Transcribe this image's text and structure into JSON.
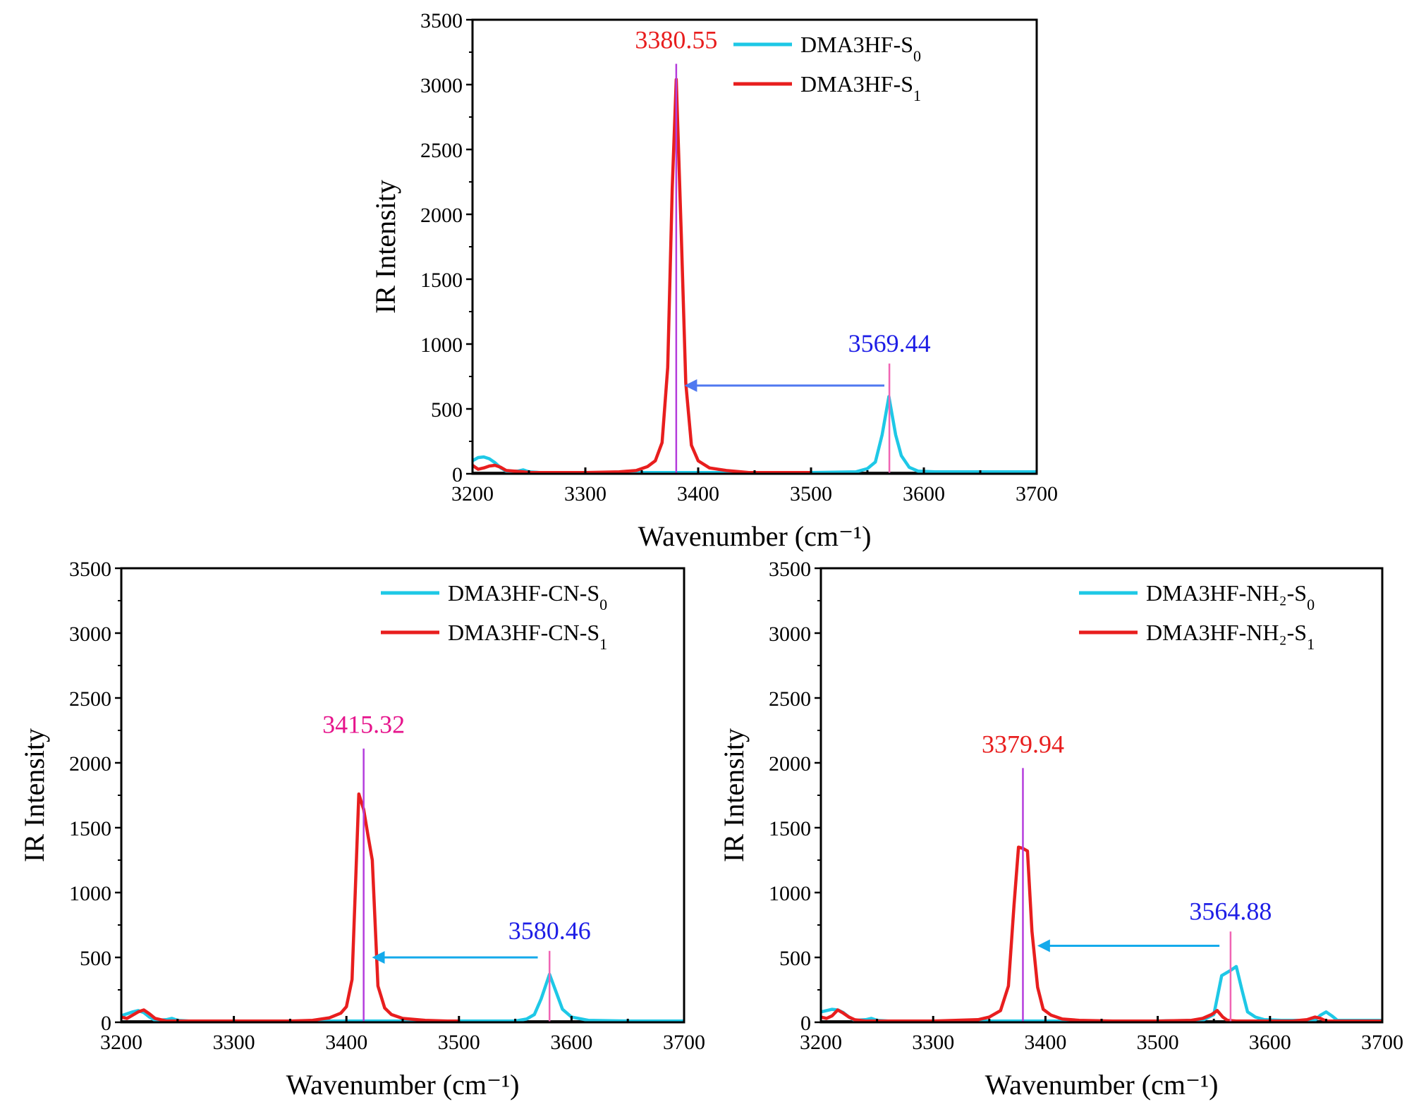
{
  "colors": {
    "s0": "#1ec8e6",
    "s1": "#e81e1e",
    "peak_line_s1": "#b43cdc",
    "peak_line_s0": "#f064b4",
    "label_red": "#e81e1e",
    "label_magenta": "#e6148c",
    "label_blue": "#1e1ee6",
    "arrow_blue": "#4f78f0",
    "arrow_cyan": "#14aaeb"
  },
  "chart_data": [
    {
      "type": "line",
      "xlabel": "Wavenumber (cm⁻¹)",
      "ylabel": "IR Intensity",
      "xlim": [
        3200,
        3700
      ],
      "ylim": [
        0,
        3500
      ],
      "xticks": [
        "3200",
        "3300",
        "3400",
        "3500",
        "3600",
        "3700"
      ],
      "yticks": [
        "0",
        "500",
        "1000",
        "1500",
        "2000",
        "2500",
        "3000",
        "3500"
      ],
      "legend_position": "top-right",
      "series": [
        {
          "key": "s0",
          "name": "DMA3HF-S",
          "subscript": "0",
          "x": [
            3200,
            3205,
            3210,
            3215,
            3220,
            3225,
            3230,
            3240,
            3245,
            3250,
            3260,
            3300,
            3400,
            3500,
            3540,
            3550,
            3557,
            3563,
            3569,
            3575,
            3580,
            3587,
            3595,
            3610,
            3650,
            3700
          ],
          "y": [
            100,
            125,
            130,
            115,
            85,
            45,
            20,
            20,
            30,
            15,
            10,
            10,
            10,
            10,
            15,
            40,
            90,
            300,
            595,
            300,
            140,
            50,
            20,
            15,
            15,
            15
          ]
        },
        {
          "key": "s1",
          "name": "DMA3HF-S",
          "subscript": "1",
          "x": [
            3200,
            3205,
            3210,
            3215,
            3220,
            3225,
            3230,
            3245,
            3250,
            3260,
            3300,
            3330,
            3345,
            3355,
            3362,
            3368,
            3373,
            3377,
            3380.55,
            3385,
            3389,
            3394,
            3400,
            3410,
            3425,
            3445,
            3480,
            3500
          ],
          "y": [
            65,
            35,
            45,
            60,
            65,
            50,
            25,
            15,
            10,
            10,
            10,
            15,
            25,
            55,
            100,
            240,
            820,
            2200,
            3040,
            1850,
            700,
            220,
            100,
            45,
            25,
            10,
            10,
            10
          ]
        }
      ],
      "peaks": [
        {
          "x": 3380.55,
          "label": "3380.55",
          "line_top": 3160,
          "label_y": 3280,
          "line_color_key": "peak_line_s1",
          "label_color_key": "label_red"
        },
        {
          "x": 3569.44,
          "label": "3569.44",
          "line_top": 850,
          "label_y": 940,
          "line_color_key": "peak_line_s0",
          "label_color_key": "label_blue"
        }
      ],
      "arrow": {
        "from_x": 3565,
        "to_x": 3390,
        "y": 680,
        "color_key": "arrow_blue"
      }
    },
    {
      "type": "line",
      "xlabel": "Wavenumber (cm⁻¹)",
      "ylabel": "IR Intensity",
      "xlim": [
        3200,
        3700
      ],
      "ylim": [
        0,
        3500
      ],
      "xticks": [
        "3200",
        "3300",
        "3400",
        "3500",
        "3600",
        "3700"
      ],
      "yticks": [
        "0",
        "500",
        "1000",
        "1500",
        "2000",
        "2500",
        "3000",
        "3500"
      ],
      "legend_position": "top-right",
      "series": [
        {
          "key": "s0",
          "name": "DMA3HF-CN-S",
          "subscript": "0",
          "x": [
            3200,
            3205,
            3210,
            3215,
            3220,
            3225,
            3230,
            3240,
            3245,
            3250,
            3260,
            3300,
            3400,
            3500,
            3550,
            3560,
            3567,
            3573,
            3580.46,
            3586,
            3592,
            3600,
            3615,
            3650,
            3700
          ],
          "y": [
            50,
            65,
            80,
            90,
            75,
            40,
            15,
            20,
            30,
            15,
            10,
            10,
            10,
            10,
            10,
            25,
            60,
            180,
            370,
            240,
            100,
            40,
            15,
            10,
            10
          ]
        },
        {
          "key": "s1",
          "name": "DMA3HF-CN-S",
          "subscript": "1",
          "x": [
            3200,
            3205,
            3210,
            3215,
            3220,
            3225,
            3230,
            3240,
            3250,
            3300,
            3350,
            3370,
            3385,
            3395,
            3400,
            3405,
            3411,
            3415.32,
            3419,
            3423,
            3428,
            3434,
            3440,
            3450,
            3470,
            3490,
            3500
          ],
          "y": [
            40,
            30,
            55,
            80,
            95,
            65,
            30,
            10,
            10,
            10,
            10,
            15,
            35,
            70,
            120,
            330,
            1760,
            1640,
            1450,
            1250,
            280,
            110,
            60,
            30,
            15,
            10,
            10
          ]
        }
      ],
      "peaks": [
        {
          "x": 3415.32,
          "label": "3415.32",
          "line_top": 2110,
          "label_y": 2230,
          "line_color_key": "peak_line_s1",
          "label_color_key": "label_magenta"
        },
        {
          "x": 3580.46,
          "label": "3580.46",
          "line_top": 550,
          "label_y": 640,
          "line_color_key": "peak_line_s0",
          "label_color_key": "label_blue"
        }
      ],
      "arrow": {
        "from_x": 3570,
        "to_x": 3425,
        "y": 500,
        "color_key": "arrow_cyan"
      }
    },
    {
      "type": "line",
      "xlabel": "Wavenumber (cm⁻¹)",
      "ylabel": "IR Intensity",
      "xlim": [
        3200,
        3700
      ],
      "ylim": [
        0,
        3500
      ],
      "xticks": [
        "3200",
        "3300",
        "3400",
        "3500",
        "3600",
        "3700"
      ],
      "yticks": [
        "0",
        "500",
        "1000",
        "1500",
        "2000",
        "2500",
        "3000",
        "3500"
      ],
      "legend_position": "top-right",
      "series": [
        {
          "key": "s0",
          "name": "DMA3HF-NH₂-S",
          "subscript": "0",
          "x": [
            3200,
            3205,
            3210,
            3215,
            3220,
            3225,
            3230,
            3240,
            3245,
            3250,
            3260,
            3300,
            3400,
            3500,
            3540,
            3550,
            3557,
            3564.88,
            3570,
            3575,
            3580,
            3587,
            3595,
            3610,
            3640,
            3645,
            3650,
            3655,
            3660,
            3700
          ],
          "y": [
            80,
            90,
            100,
            95,
            75,
            40,
            15,
            20,
            30,
            15,
            10,
            10,
            10,
            10,
            15,
            60,
            360,
            400,
            430,
            250,
            80,
            40,
            20,
            15,
            15,
            55,
            80,
            50,
            15,
            15
          ]
        },
        {
          "key": "s1",
          "name": "DMA3HF-NH₂-S",
          "subscript": "1",
          "x": [
            3200,
            3205,
            3210,
            3215,
            3220,
            3225,
            3230,
            3240,
            3250,
            3300,
            3340,
            3350,
            3360,
            3367,
            3372,
            3376,
            3379.94,
            3384,
            3388,
            3393,
            3398,
            3405,
            3415,
            3430,
            3460,
            3500,
            3530,
            3540,
            3548,
            3553,
            3558,
            3562,
            3570,
            3620,
            3633,
            3640,
            3645,
            3650,
            3700
          ],
          "y": [
            40,
            30,
            50,
            95,
            70,
            40,
            20,
            10,
            10,
            10,
            20,
            40,
            90,
            280,
            900,
            1350,
            1340,
            1320,
            700,
            270,
            100,
            55,
            25,
            15,
            10,
            10,
            15,
            30,
            60,
            90,
            40,
            15,
            10,
            10,
            20,
            40,
            30,
            10,
            10
          ]
        }
      ],
      "peaks": [
        {
          "x": 3379.94,
          "label": "3379.94",
          "line_top": 1960,
          "label_y": 2080,
          "line_color_key": "peak_line_s1",
          "label_color_key": "label_red"
        },
        {
          "x": 3564.88,
          "label": "3564.88",
          "line_top": 700,
          "label_y": 790,
          "line_color_key": "peak_line_s0",
          "label_color_key": "label_blue"
        }
      ],
      "arrow": {
        "from_x": 3555,
        "to_x": 3395,
        "y": 590,
        "color_key": "arrow_cyan"
      }
    }
  ]
}
